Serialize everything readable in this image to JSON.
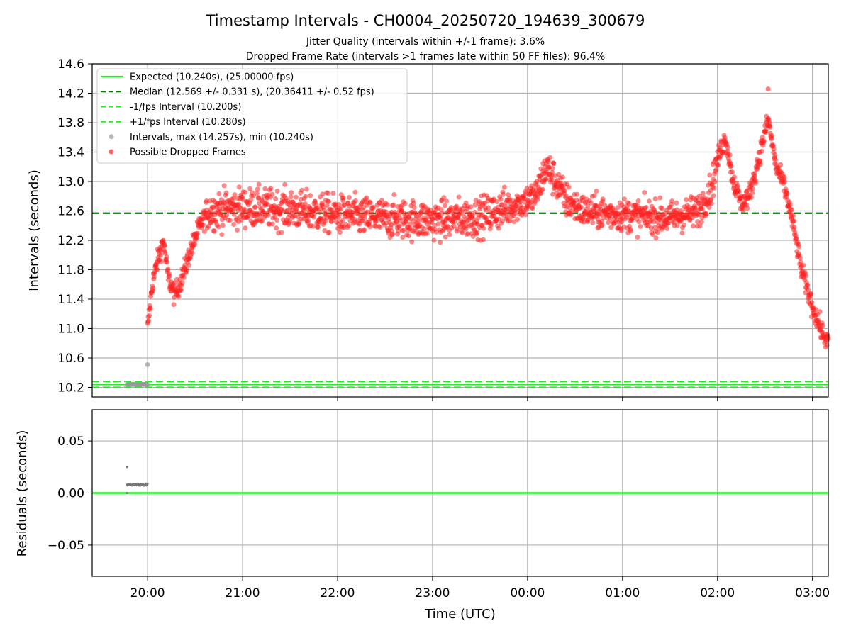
{
  "title": "Timestamp Intervals - CH0004_20250720_194639_300679",
  "subtitle_1": "Jitter Quality (intervals within +/-1 frame): 3.6%",
  "subtitle_2": "Dropped Frame Rate (intervals >1 frames late within 50 FF files): 96.4%",
  "chart_data": [
    {
      "type": "scatter",
      "name": "intervals",
      "ylabel": "Intervals (seconds)",
      "ylim": [
        10.07,
        14.6
      ],
      "yticks": [
        "10.2",
        "10.6",
        "11.0",
        "11.4",
        "11.8",
        "12.2",
        "12.6",
        "13.0",
        "13.4",
        "13.8",
        "14.2",
        "14.6"
      ],
      "x_unit": "hours since 20:00 UTC",
      "xlim_time": [
        "19:25",
        "03:10"
      ],
      "grid": true,
      "legend_position": "upper-left",
      "legend": [
        {
          "label": "Expected (10.240s), (25.00000 fps)",
          "style": "solid",
          "color": "#22ee22"
        },
        {
          "label": "Median (12.569 +/- 0.331 s), (20.36411 +/- 0.52 fps)",
          "style": "dashed",
          "color": "#007700"
        },
        {
          "label": "-1/fps Interval (10.200s)",
          "style": "dashed",
          "color": "#22ee22"
        },
        {
          "label": "+1/fps Interval (10.280s)",
          "style": "dashed",
          "color": "#22ee22"
        },
        {
          "label": "Intervals, max (14.257s), min (10.240s)",
          "style": "dot",
          "color": "#999999"
        },
        {
          "label": "Possible Dropped Frames",
          "style": "dot",
          "color": "#ff2222"
        }
      ],
      "reference_lines": {
        "expected": 10.24,
        "median": 12.569,
        "minus_one_frame": 10.2,
        "plus_one_frame": 10.28
      },
      "normal_intervals": {
        "x_range_time": [
          "19:47",
          "20:00"
        ],
        "value": 10.24,
        "outlier": {
          "time": "20:00",
          "value": 10.51
        }
      },
      "dropped_frames_trend": [
        {
          "time": "20:00",
          "value": 11.0
        },
        {
          "time": "20:03",
          "value": 11.6
        },
        {
          "time": "20:06",
          "value": 11.9
        },
        {
          "time": "20:10",
          "value": 12.2
        },
        {
          "time": "20:13",
          "value": 11.7
        },
        {
          "time": "20:17",
          "value": 11.45
        },
        {
          "time": "20:22",
          "value": 11.7
        },
        {
          "time": "20:27",
          "value": 12.05
        },
        {
          "time": "20:33",
          "value": 12.4
        },
        {
          "time": "20:39",
          "value": 12.6
        },
        {
          "time": "21:00",
          "value": 12.65
        },
        {
          "time": "21:30",
          "value": 12.62
        },
        {
          "time": "22:00",
          "value": 12.55
        },
        {
          "time": "22:30",
          "value": 12.5
        },
        {
          "time": "23:00",
          "value": 12.47
        },
        {
          "time": "23:30",
          "value": 12.52
        },
        {
          "time": "23:55",
          "value": 12.7
        },
        {
          "time": "00:05",
          "value": 12.8
        },
        {
          "time": "00:12",
          "value": 13.2
        },
        {
          "time": "00:18",
          "value": 13.0
        },
        {
          "time": "00:24",
          "value": 12.75
        },
        {
          "time": "00:35",
          "value": 12.6
        },
        {
          "time": "01:00",
          "value": 12.55
        },
        {
          "time": "01:30",
          "value": 12.5
        },
        {
          "time": "01:48",
          "value": 12.6
        },
        {
          "time": "01:56",
          "value": 12.9
        },
        {
          "time": "02:00",
          "value": 13.3
        },
        {
          "time": "02:05",
          "value": 13.6
        },
        {
          "time": "02:10",
          "value": 13.0
        },
        {
          "time": "02:15",
          "value": 12.7
        },
        {
          "time": "02:20",
          "value": 12.8
        },
        {
          "time": "02:26",
          "value": 13.3
        },
        {
          "time": "02:32",
          "value": 13.85
        },
        {
          "time": "02:37",
          "value": 13.2
        },
        {
          "time": "02:42",
          "value": 12.95
        },
        {
          "time": "02:47",
          "value": 12.5
        },
        {
          "time": "02:53",
          "value": 11.8
        },
        {
          "time": "03:00",
          "value": 11.3
        },
        {
          "time": "03:06",
          "value": 10.95
        },
        {
          "time": "03:10",
          "value": 10.8
        }
      ],
      "dropped_frames_max": 14.257
    },
    {
      "type": "scatter",
      "name": "residuals",
      "xlabel": "Time (UTC)",
      "ylabel": "Residuals (seconds)",
      "ylim": [
        -0.08,
        0.08
      ],
      "yticks": [
        "−0.05",
        "0.00",
        "0.05"
      ],
      "xticks": [
        "20:00",
        "21:00",
        "22:00",
        "23:00",
        "00:00",
        "01:00",
        "02:00",
        "03:00"
      ],
      "zero_line_color": "#22ee22",
      "points": {
        "x_range_time": [
          "19:47",
          "20:00"
        ],
        "typical_value": 0.008,
        "outlier": {
          "time": "19:47",
          "value": 0.025
        }
      }
    }
  ],
  "colors": {
    "expected": "#22ee22",
    "median": "#007700",
    "dropped": "#ff2222",
    "normal": "#999999",
    "grid": "#b0b0b0"
  }
}
